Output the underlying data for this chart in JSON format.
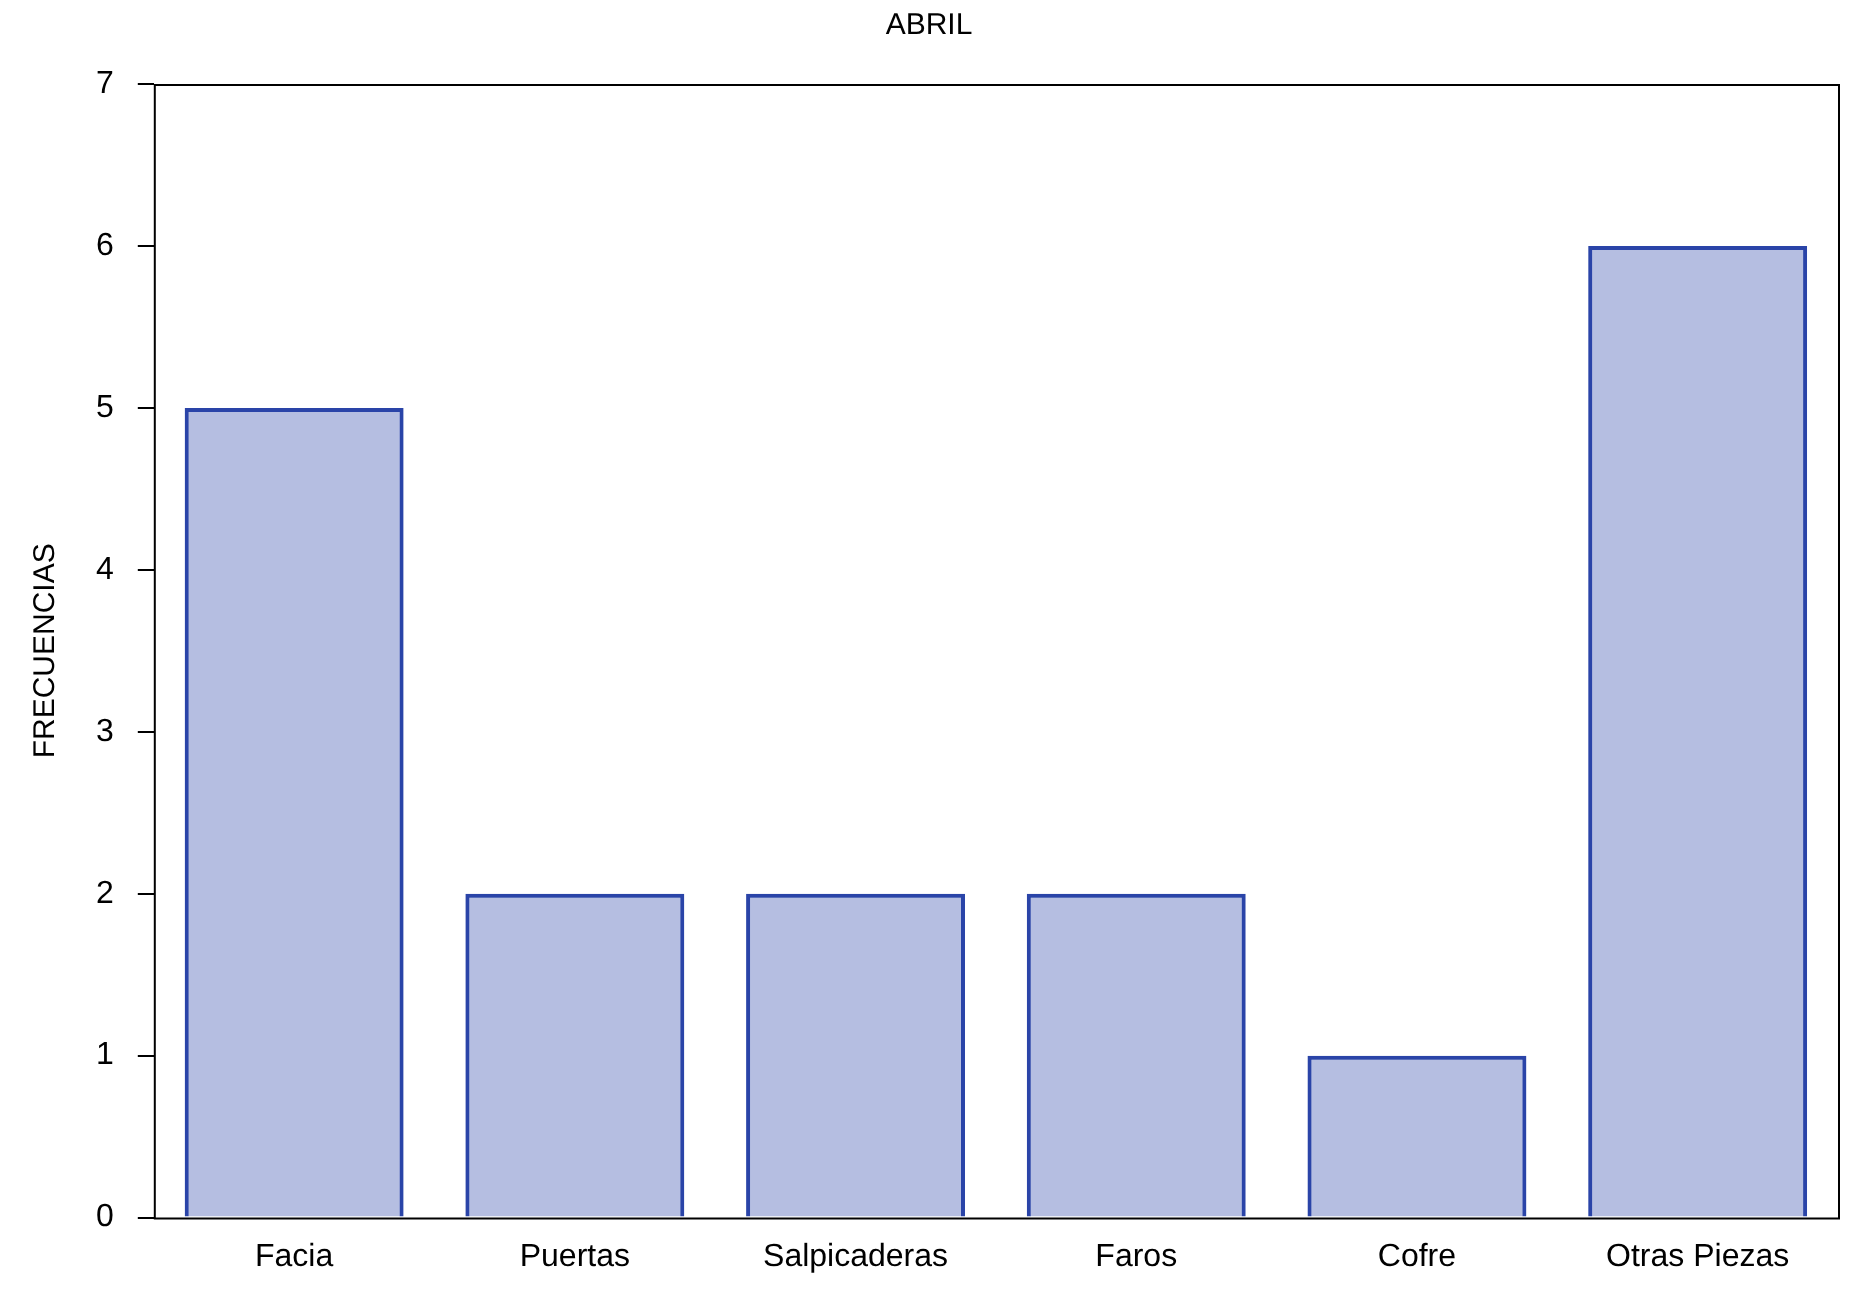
{
  "chart_data": {
    "type": "bar",
    "title": "ABRIL",
    "ylabel": "FRECUENCIAS",
    "categories": [
      "Facia",
      "Puertas",
      "Salpicaderas",
      "Faros",
      "Cofre",
      "Otras Piezas"
    ],
    "values": [
      5,
      2,
      2,
      2,
      1,
      6
    ],
    "color": "#2a44a8",
    "ylim": [
      0,
      7
    ],
    "yticks": [
      0,
      1,
      2,
      3,
      4,
      5,
      6,
      7
    ],
    "grid": false,
    "legend": false
  }
}
